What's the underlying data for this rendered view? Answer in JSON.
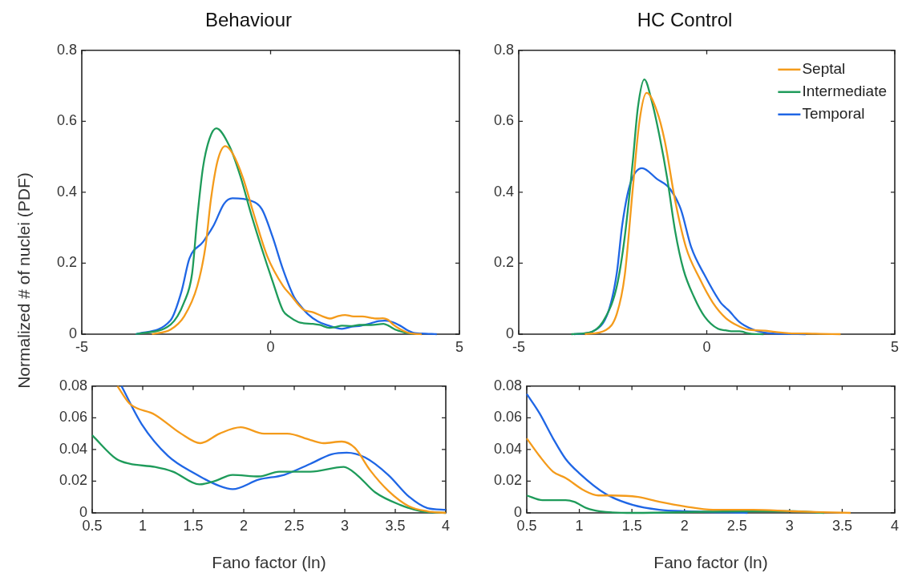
{
  "chart_data": [
    {
      "type": "line",
      "title": "Behaviour",
      "ylabel": "Normalized # of nuclei (PDF)",
      "xlim": [
        -5,
        5
      ],
      "xticks": [
        -5,
        0,
        5
      ],
      "ylim": [
        0,
        0.8
      ],
      "yticks": [
        0,
        0.2,
        0.4,
        0.6,
        0.8
      ],
      "grid": false,
      "legend": false,
      "marker": "none",
      "line_style": "solid",
      "series": [
        {
          "color": "#f49b1b",
          "x": [
            -3.14,
            -2.65,
            -2.29,
            -1.94,
            -1.72,
            -1.58,
            -1.4,
            -1.2,
            -1.01,
            -0.73,
            -0.45,
            -0.09,
            0.33,
            0.55,
            0.76,
            0.87,
            1.12,
            1.38,
            1.57,
            1.76,
            1.97,
            2.2,
            2.43,
            2.66,
            2.79,
            2.97,
            3.1,
            3.25,
            3.43,
            3.64,
            3.82,
            4.0
          ],
          "values": [
            0,
            0.013,
            0.05,
            0.136,
            0.25,
            0.38,
            0.49,
            0.53,
            0.51,
            0.44,
            0.34,
            0.22,
            0.136,
            0.108,
            0.08,
            0.069,
            0.062,
            0.05,
            0.044,
            0.05,
            0.054,
            0.05,
            0.05,
            0.046,
            0.044,
            0.045,
            0.041,
            0.027,
            0.014,
            0.004,
            0.001,
            0
          ]
        },
        {
          "color": "#1e9b5a",
          "x": [
            -3.57,
            -2.65,
            -2.29,
            -2.08,
            -1.94,
            -1.79,
            -1.62,
            -1.44,
            -1.09,
            -0.8,
            -0.52,
            -0.23,
            0.05,
            0.33,
            0.5,
            0.74,
            0.87,
            1.12,
            1.3,
            1.56,
            1.71,
            1.89,
            2.15,
            2.35,
            2.66,
            2.99,
            3.12,
            3.3,
            3.55,
            3.76
          ],
          "values": [
            0,
            0.027,
            0.09,
            0.17,
            0.33,
            0.47,
            0.55,
            0.58,
            0.53,
            0.445,
            0.34,
            0.24,
            0.15,
            0.066,
            0.049,
            0.034,
            0.031,
            0.029,
            0.026,
            0.018,
            0.02,
            0.024,
            0.023,
            0.026,
            0.026,
            0.029,
            0.024,
            0.013,
            0.005,
            0.001
          ]
        },
        {
          "color": "#1f66e5",
          "x": [
            -3.57,
            -2.65,
            -2.36,
            -2.15,
            -1.79,
            -1.51,
            -1.23,
            -1.01,
            -0.52,
            -0.23,
            0.05,
            0.33,
            0.62,
            0.79,
            0.99,
            1.25,
            1.51,
            1.76,
            1.89,
            2.15,
            2.4,
            2.66,
            2.87,
            3.02,
            3.2,
            3.43,
            3.64,
            3.82,
            4.0,
            4.4
          ],
          "values": [
            0,
            0.039,
            0.12,
            0.213,
            0.26,
            0.306,
            0.368,
            0.383,
            0.376,
            0.352,
            0.275,
            0.182,
            0.105,
            0.08,
            0.056,
            0.036,
            0.025,
            0.017,
            0.015,
            0.021,
            0.024,
            0.031,
            0.037,
            0.038,
            0.035,
            0.024,
            0.01,
            0.003,
            0.002,
            0
          ]
        }
      ]
    },
    {
      "type": "line",
      "title": "HC Control",
      "xlim": [
        -5,
        5
      ],
      "xticks": [
        -5,
        0,
        5
      ],
      "ylim": [
        0,
        0.8
      ],
      "yticks": [
        0,
        0.2,
        0.4,
        0.6,
        0.8
      ],
      "grid": false,
      "legend": "top right",
      "marker": "none",
      "line_style": "solid",
      "series": [
        {
          "name": "Septal",
          "color": "#f49b1b",
          "x": [
            -3.24,
            -2.68,
            -2.39,
            -2.18,
            -1.97,
            -1.79,
            -1.6,
            -1.33,
            -1.12,
            -0.84,
            -0.55,
            -0.2,
            0.16,
            0.51,
            0.86,
            1.05,
            1.3,
            1.56,
            1.76,
            2.01,
            2.27,
            2.65,
            3.03,
            3.56
          ],
          "values": [
            0,
            0.012,
            0.058,
            0.167,
            0.407,
            0.6,
            0.68,
            0.63,
            0.546,
            0.376,
            0.244,
            0.159,
            0.089,
            0.045,
            0.022,
            0.014,
            0.011,
            0.01,
            0.007,
            0.004,
            0.002,
            0.002,
            0.001,
            0
          ]
        },
        {
          "name": "Intermediate",
          "color": "#1e9b5a",
          "x": [
            -3.6,
            -3.03,
            -2.68,
            -2.39,
            -2.18,
            -1.97,
            -1.83,
            -1.66,
            -1.47,
            -1.26,
            -1.05,
            -0.84,
            -0.62,
            -0.34,
            -0.06,
            0.3,
            0.5,
            0.65,
            0.87,
            0.95,
            1.07,
            1.2,
            1.51
          ],
          "values": [
            0,
            0.008,
            0.05,
            0.136,
            0.275,
            0.484,
            0.64,
            0.718,
            0.66,
            0.56,
            0.438,
            0.29,
            0.182,
            0.105,
            0.05,
            0.015,
            0.011,
            0.008,
            0.008,
            0.007,
            0.003,
            0.001,
            0
          ]
        },
        {
          "name": "Temporal",
          "color": "#1f66e5",
          "x": [
            -3.53,
            -3.03,
            -2.61,
            -2.39,
            -2.25,
            -2.04,
            -1.72,
            -1.33,
            -0.98,
            -0.69,
            -0.41,
            -0.06,
            0.37,
            0.5,
            0.62,
            0.75,
            0.87,
            1.0,
            1.25,
            1.51,
            1.76,
            2.01,
            2.63
          ],
          "values": [
            0,
            0.008,
            0.066,
            0.174,
            0.306,
            0.422,
            0.468,
            0.438,
            0.41,
            0.352,
            0.244,
            0.167,
            0.089,
            0.075,
            0.063,
            0.047,
            0.034,
            0.025,
            0.012,
            0.005,
            0.002,
            0.001,
            0
          ]
        }
      ]
    },
    {
      "type": "line",
      "xlabel": "Fano factor (ln)",
      "xlim": [
        0.5,
        4
      ],
      "xticks": [
        0.5,
        1,
        1.5,
        2,
        2.5,
        3,
        3.5,
        4
      ],
      "ylim": [
        0,
        0.08
      ],
      "yticks": [
        0,
        0.02,
        0.04,
        0.06,
        0.08
      ],
      "grid": false,
      "legend": false,
      "marker": "none",
      "line_style": "solid",
      "series": [
        {
          "color": "#f49b1b",
          "x": [
            0.75,
            0.87,
            1.12,
            1.38,
            1.57,
            1.76,
            1.97,
            2.2,
            2.43,
            2.66,
            2.79,
            2.97,
            3.1,
            3.25,
            3.43,
            3.64,
            3.82,
            4.0
          ],
          "values": [
            0.08,
            0.069,
            0.062,
            0.05,
            0.044,
            0.05,
            0.054,
            0.05,
            0.05,
            0.046,
            0.044,
            0.045,
            0.041,
            0.027,
            0.014,
            0.004,
            0.001,
            0
          ]
        },
        {
          "color": "#1e9b5a",
          "x": [
            0.5,
            0.74,
            0.87,
            1.12,
            1.3,
            1.56,
            1.71,
            1.89,
            2.15,
            2.35,
            2.66,
            2.99,
            3.12,
            3.3,
            3.55,
            3.76,
            4.0
          ],
          "values": [
            0.049,
            0.034,
            0.031,
            0.029,
            0.026,
            0.018,
            0.02,
            0.024,
            0.023,
            0.026,
            0.026,
            0.029,
            0.024,
            0.013,
            0.005,
            0.001,
            0
          ]
        },
        {
          "color": "#1f66e5",
          "x": [
            0.79,
            0.99,
            1.25,
            1.51,
            1.76,
            1.89,
            2.15,
            2.4,
            2.66,
            2.87,
            3.02,
            3.2,
            3.43,
            3.64,
            3.82,
            4.0
          ],
          "values": [
            0.08,
            0.056,
            0.036,
            0.025,
            0.017,
            0.015,
            0.021,
            0.024,
            0.031,
            0.037,
            0.038,
            0.035,
            0.024,
            0.01,
            0.003,
            0.002
          ]
        }
      ]
    },
    {
      "type": "line",
      "xlabel": "Fano factor (ln)",
      "xlim": [
        0.5,
        4
      ],
      "xticks": [
        0.5,
        1,
        1.5,
        2,
        2.5,
        3,
        3.5,
        4
      ],
      "ylim": [
        0,
        0.08
      ],
      "yticks": [
        0,
        0.02,
        0.04,
        0.06,
        0.08
      ],
      "grid": false,
      "legend": false,
      "marker": "none",
      "line_style": "solid",
      "series": [
        {
          "color": "#f49b1b",
          "x": [
            0.5,
            0.62,
            0.75,
            0.87,
            1.05,
            1.18,
            1.3,
            1.56,
            1.76,
            2.01,
            2.27,
            2.65,
            3.03,
            3.58
          ],
          "values": [
            0.047,
            0.036,
            0.026,
            0.022,
            0.014,
            0.011,
            0.011,
            0.01,
            0.007,
            0.004,
            0.002,
            0.002,
            0.001,
            0
          ]
        },
        {
          "color": "#1e9b5a",
          "x": [
            0.5,
            0.65,
            0.87,
            0.95,
            1.07,
            1.2,
            1.51,
            2.52,
            3.03,
            3.33
          ],
          "values": [
            0.011,
            0.008,
            0.008,
            0.007,
            0.003,
            0.001,
            0,
            0.001,
            0.001,
            0
          ]
        },
        {
          "color": "#1f66e5",
          "x": [
            0.5,
            0.62,
            0.75,
            0.87,
            1.0,
            1.25,
            1.51,
            1.76,
            2.01,
            2.6
          ],
          "values": [
            0.075,
            0.063,
            0.047,
            0.034,
            0.025,
            0.012,
            0.005,
            0.002,
            0.001,
            0
          ]
        }
      ]
    }
  ]
}
